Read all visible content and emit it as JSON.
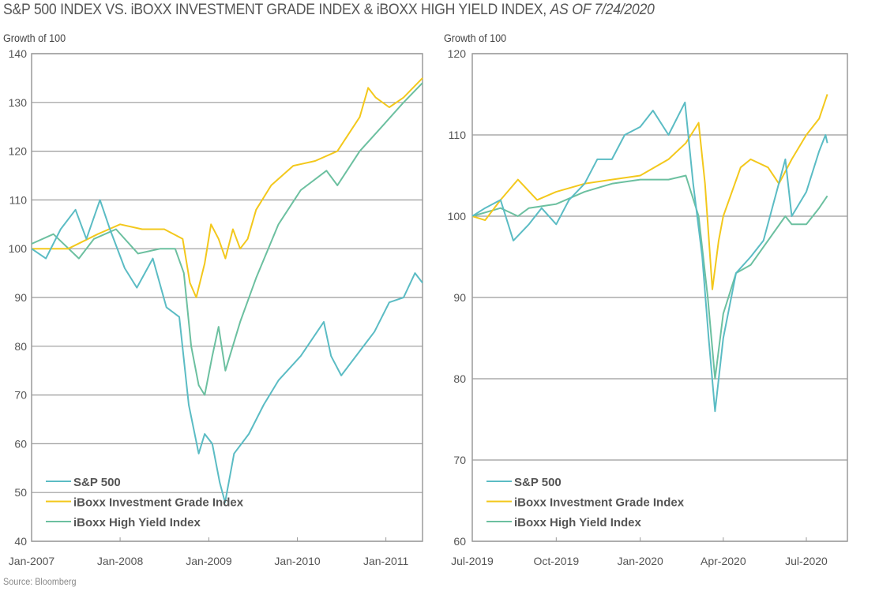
{
  "title": {
    "main": "S&P 500 INDEX VS. iBOXX INVESTMENT GRADE INDEX & iBOXX HIGH YIELD INDEX,",
    "suffix": "AS OF 7/24/2020"
  },
  "source": "Source: Bloomberg",
  "colors": {
    "S&P 500": "#5bbcc4",
    "iBoxx Investment Grade Index": "#f3c81c",
    "iBoxx High Yield Index": "#6cc0a0"
  },
  "chart_data": [
    {
      "type": "line",
      "ylabel": "Growth of 100",
      "ylim": [
        40,
        140
      ],
      "yticks": [
        40,
        50,
        60,
        70,
        80,
        90,
        100,
        110,
        120,
        130,
        140
      ],
      "xlim": [
        "2007-01-01",
        "2011-06-01"
      ],
      "xticks": [
        {
          "date": "2007-01-01",
          "label": "Jan-2007"
        },
        {
          "date": "2008-01-01",
          "label": "Jan-2008"
        },
        {
          "date": "2009-01-01",
          "label": "Jan-2009"
        },
        {
          "date": "2010-01-01",
          "label": "Jan-2010"
        },
        {
          "date": "2011-01-01",
          "label": "Jan-2011"
        }
      ],
      "grid": true,
      "legend": "bottom-left",
      "series": [
        {
          "name": "S&P 500",
          "points": [
            [
              "2007-01-01",
              100
            ],
            [
              "2007-03-01",
              98
            ],
            [
              "2007-05-01",
              104
            ],
            [
              "2007-07-01",
              108
            ],
            [
              "2007-08-15",
              102
            ],
            [
              "2007-10-10",
              110
            ],
            [
              "2007-11-20",
              104
            ],
            [
              "2008-01-20",
              96
            ],
            [
              "2008-03-10",
              92
            ],
            [
              "2008-05-15",
              98
            ],
            [
              "2008-07-10",
              88
            ],
            [
              "2008-09-01",
              86
            ],
            [
              "2008-10-10",
              68
            ],
            [
              "2008-11-20",
              58
            ],
            [
              "2008-12-15",
              62
            ],
            [
              "2009-01-15",
              60
            ],
            [
              "2009-02-15",
              52
            ],
            [
              "2009-03-09",
              48
            ],
            [
              "2009-04-15",
              58
            ],
            [
              "2009-06-15",
              62
            ],
            [
              "2009-08-15",
              68
            ],
            [
              "2009-10-15",
              73
            ],
            [
              "2010-01-15",
              78
            ],
            [
              "2010-04-20",
              85
            ],
            [
              "2010-05-20",
              78
            ],
            [
              "2010-07-01",
              74
            ],
            [
              "2010-09-15",
              79
            ],
            [
              "2010-11-15",
              83
            ],
            [
              "2011-01-15",
              89
            ],
            [
              "2011-03-15",
              90
            ],
            [
              "2011-05-01",
              95
            ],
            [
              "2011-06-01",
              93
            ]
          ]
        },
        {
          "name": "iBoxx Investment Grade Index",
          "points": [
            [
              "2007-01-01",
              100
            ],
            [
              "2007-06-01",
              100
            ],
            [
              "2007-10-01",
              103
            ],
            [
              "2008-01-01",
              105
            ],
            [
              "2008-04-01",
              104
            ],
            [
              "2008-07-01",
              104
            ],
            [
              "2008-09-15",
              102
            ],
            [
              "2008-10-15",
              93
            ],
            [
              "2008-11-10",
              90
            ],
            [
              "2008-12-15",
              97
            ],
            [
              "2009-01-10",
              105
            ],
            [
              "2009-02-10",
              102
            ],
            [
              "2009-03-10",
              98
            ],
            [
              "2009-04-10",
              104
            ],
            [
              "2009-05-10",
              100
            ],
            [
              "2009-06-10",
              102
            ],
            [
              "2009-07-15",
              108
            ],
            [
              "2009-09-15",
              113
            ],
            [
              "2009-12-15",
              117
            ],
            [
              "2010-03-15",
              118
            ],
            [
              "2010-06-15",
              120
            ],
            [
              "2010-09-15",
              127
            ],
            [
              "2010-10-20",
              133
            ],
            [
              "2010-11-20",
              131
            ],
            [
              "2011-01-15",
              129
            ],
            [
              "2011-03-15",
              131
            ],
            [
              "2011-06-01",
              135
            ]
          ]
        },
        {
          "name": "iBoxx High Yield Index",
          "points": [
            [
              "2007-01-01",
              101
            ],
            [
              "2007-04-01",
              103
            ],
            [
              "2007-07-15",
              98
            ],
            [
              "2007-09-15",
              102
            ],
            [
              "2007-12-15",
              104
            ],
            [
              "2008-03-15",
              99
            ],
            [
              "2008-06-15",
              100
            ],
            [
              "2008-08-15",
              100
            ],
            [
              "2008-09-20",
              95
            ],
            [
              "2008-10-20",
              80
            ],
            [
              "2008-11-20",
              72
            ],
            [
              "2008-12-15",
              70
            ],
            [
              "2009-01-15",
              78
            ],
            [
              "2009-02-10",
              84
            ],
            [
              "2009-03-10",
              75
            ],
            [
              "2009-05-10",
              85
            ],
            [
              "2009-07-15",
              94
            ],
            [
              "2009-10-15",
              105
            ],
            [
              "2010-01-15",
              112
            ],
            [
              "2010-05-01",
              116
            ],
            [
              "2010-06-15",
              113
            ],
            [
              "2010-09-15",
              120
            ],
            [
              "2010-12-15",
              125
            ],
            [
              "2011-03-15",
              130
            ],
            [
              "2011-06-01",
              134
            ]
          ]
        }
      ]
    },
    {
      "type": "line",
      "ylabel": "Growth of 100",
      "ylim": [
        60,
        120
      ],
      "yticks": [
        60,
        70,
        80,
        90,
        100,
        110,
        120
      ],
      "xlim": [
        "2019-07-01",
        "2020-08-15"
      ],
      "xticks": [
        {
          "date": "2019-07-01",
          "label": "Jul-2019"
        },
        {
          "date": "2019-10-01",
          "label": "Oct-2019"
        },
        {
          "date": "2020-01-01",
          "label": "Jan-2020"
        },
        {
          "date": "2020-04-01",
          "label": "Apr-2020"
        },
        {
          "date": "2020-07-01",
          "label": "Jul-2020"
        }
      ],
      "grid": true,
      "legend": "bottom-left",
      "series": [
        {
          "name": "S&P 500",
          "points": [
            [
              "2019-07-01",
              100
            ],
            [
              "2019-07-15",
              101
            ],
            [
              "2019-08-01",
              102
            ],
            [
              "2019-08-15",
              97
            ],
            [
              "2019-09-01",
              99
            ],
            [
              "2019-09-15",
              101
            ],
            [
              "2019-10-01",
              99
            ],
            [
              "2019-10-15",
              102
            ],
            [
              "2019-11-01",
              104
            ],
            [
              "2019-11-15",
              107
            ],
            [
              "2019-12-01",
              107
            ],
            [
              "2019-12-15",
              110
            ],
            [
              "2020-01-01",
              111
            ],
            [
              "2020-01-15",
              113
            ],
            [
              "2020-02-01",
              110
            ],
            [
              "2020-02-19",
              114
            ],
            [
              "2020-02-28",
              104
            ],
            [
              "2020-03-09",
              95
            ],
            [
              "2020-03-16",
              85
            ],
            [
              "2020-03-23",
              76
            ],
            [
              "2020-04-01",
              85
            ],
            [
              "2020-04-15",
              93
            ],
            [
              "2020-05-01",
              95
            ],
            [
              "2020-05-15",
              97
            ],
            [
              "2020-06-08",
              107
            ],
            [
              "2020-06-15",
              100
            ],
            [
              "2020-07-01",
              103
            ],
            [
              "2020-07-15",
              108
            ],
            [
              "2020-07-22",
              110
            ],
            [
              "2020-07-24",
              109
            ]
          ]
        },
        {
          "name": "iBoxx Investment Grade Index",
          "points": [
            [
              "2019-07-01",
              100
            ],
            [
              "2019-07-15",
              99.5
            ],
            [
              "2019-08-01",
              102
            ],
            [
              "2019-08-20",
              104.5
            ],
            [
              "2019-09-10",
              102
            ],
            [
              "2019-10-01",
              103
            ],
            [
              "2019-11-01",
              104
            ],
            [
              "2019-12-01",
              104.5
            ],
            [
              "2020-01-01",
              105
            ],
            [
              "2020-02-01",
              107
            ],
            [
              "2020-02-20",
              109
            ],
            [
              "2020-03-05",
              111.5
            ],
            [
              "2020-03-12",
              104
            ],
            [
              "2020-03-20",
              91
            ],
            [
              "2020-03-27",
              97
            ],
            [
              "2020-04-01",
              100
            ],
            [
              "2020-04-20",
              106
            ],
            [
              "2020-05-01",
              107
            ],
            [
              "2020-05-20",
              106
            ],
            [
              "2020-06-01",
              104
            ],
            [
              "2020-06-15",
              107
            ],
            [
              "2020-07-01",
              110
            ],
            [
              "2020-07-15",
              112
            ],
            [
              "2020-07-24",
              115
            ]
          ]
        },
        {
          "name": "iBoxx High Yield Index",
          "points": [
            [
              "2019-07-01",
              100
            ],
            [
              "2019-08-01",
              101
            ],
            [
              "2019-08-20",
              100
            ],
            [
              "2019-09-01",
              101
            ],
            [
              "2019-10-01",
              101.5
            ],
            [
              "2019-11-01",
              103
            ],
            [
              "2019-12-01",
              104
            ],
            [
              "2020-01-01",
              104.5
            ],
            [
              "2020-02-01",
              104.5
            ],
            [
              "2020-02-20",
              105
            ],
            [
              "2020-03-05",
              100
            ],
            [
              "2020-03-15",
              90
            ],
            [
              "2020-03-23",
              80
            ],
            [
              "2020-04-01",
              88
            ],
            [
              "2020-04-15",
              93
            ],
            [
              "2020-05-01",
              94
            ],
            [
              "2020-06-08",
              100
            ],
            [
              "2020-06-15",
              99
            ],
            [
              "2020-07-01",
              99
            ],
            [
              "2020-07-15",
              101
            ],
            [
              "2020-07-24",
              102.5
            ]
          ]
        }
      ]
    }
  ]
}
